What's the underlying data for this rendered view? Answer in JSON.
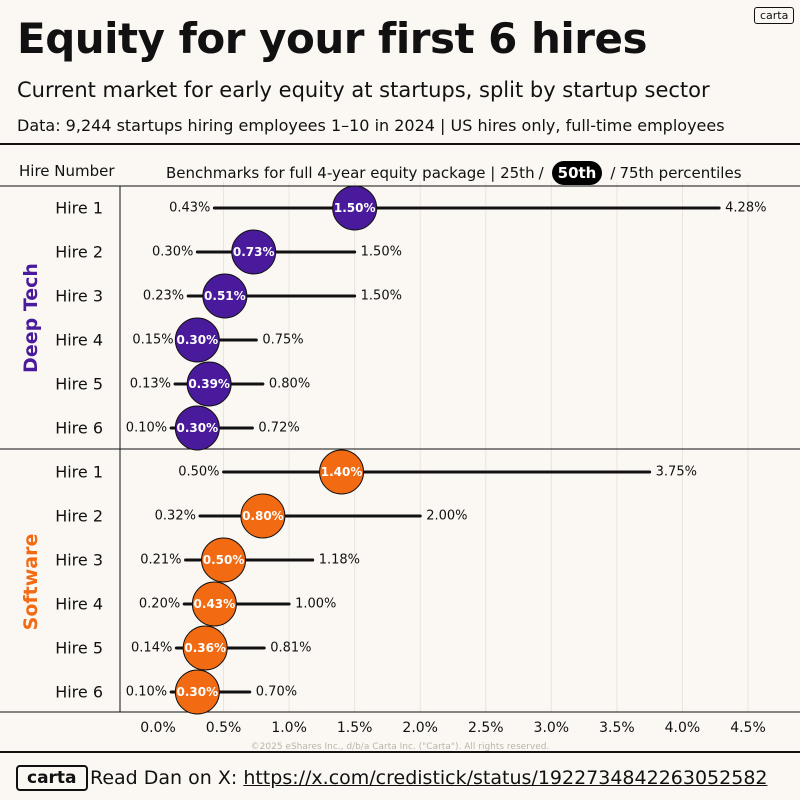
{
  "header": {
    "title": "Equity for your first 6 hires",
    "subtitle": "Current market for early equity at startups, split by startup sector",
    "source": "Data: 9,244 startups hiring employees 1–10 in 2024 | US hires only, full-time employees",
    "logo": "carta"
  },
  "columns": {
    "hire_number": "Hire Number",
    "benchmarks_prefix": "Benchmarks for full 4-year equity package | 25th",
    "slash1": "/",
    "median": "50th",
    "slash2": "/",
    "benchmarks_suffix": "75th percentiles"
  },
  "copyright": "©2025 eShares Inc., d/b/a Carta Inc. (\"Carta\"). All rights reserved.",
  "footer": {
    "logo": "carta",
    "prefix": "Read Dan on X:",
    "url": "https://x.com/credistick/status/1922734842263052582"
  },
  "colors": {
    "deep_tech": "#4a1a9c",
    "software": "#f26a12",
    "line": "#111111",
    "grid": "#e8e3dc"
  },
  "chart_data": {
    "type": "range-dot",
    "x_axis": {
      "ticks": [
        "0.0%",
        "0.5%",
        "1.0%",
        "1.5%",
        "2.0%",
        "2.5%",
        "3.0%",
        "3.5%",
        "4.0%",
        "4.5%"
      ],
      "tick_values": [
        0,
        0.5,
        1.0,
        1.5,
        2.0,
        2.5,
        3.0,
        3.5,
        4.0,
        4.5
      ],
      "range": [
        0,
        4.5
      ]
    },
    "groups": [
      {
        "name": "Deep Tech",
        "color": "#4a1a9c",
        "rows": [
          {
            "label": "Hire 1",
            "p25": 0.43,
            "p50": 1.5,
            "p75": 4.28,
            "p25_label": "0.43%",
            "p50_label": "1.50%",
            "p75_label": "4.28%"
          },
          {
            "label": "Hire 2",
            "p25": 0.3,
            "p50": 0.73,
            "p75": 1.5,
            "p25_label": "0.30%",
            "p50_label": "0.73%",
            "p75_label": "1.50%"
          },
          {
            "label": "Hire 3",
            "p25": 0.23,
            "p50": 0.51,
            "p75": 1.5,
            "p25_label": "0.23%",
            "p50_label": "0.51%",
            "p75_label": "1.50%"
          },
          {
            "label": "Hire 4",
            "p25": 0.15,
            "p50": 0.3,
            "p75": 0.75,
            "p25_label": "0.15%",
            "p50_label": "0.30%",
            "p75_label": "0.75%"
          },
          {
            "label": "Hire 5",
            "p25": 0.13,
            "p50": 0.39,
            "p75": 0.8,
            "p25_label": "0.13%",
            "p50_label": "0.39%",
            "p75_label": "0.80%"
          },
          {
            "label": "Hire 6",
            "p25": 0.1,
            "p50": 0.3,
            "p75": 0.72,
            "p25_label": "0.10%",
            "p50_label": "0.30%",
            "p75_label": "0.72%"
          }
        ]
      },
      {
        "name": "Software",
        "color": "#f26a12",
        "rows": [
          {
            "label": "Hire 1",
            "p25": 0.5,
            "p50": 1.4,
            "p75": 3.75,
            "p25_label": "0.50%",
            "p50_label": "1.40%",
            "p75_label": "3.75%"
          },
          {
            "label": "Hire 2",
            "p25": 0.32,
            "p50": 0.8,
            "p75": 2.0,
            "p25_label": "0.32%",
            "p50_label": "0.80%",
            "p75_label": "2.00%"
          },
          {
            "label": "Hire 3",
            "p25": 0.21,
            "p50": 0.5,
            "p75": 1.18,
            "p25_label": "0.21%",
            "p50_label": "0.50%",
            "p75_label": "1.18%"
          },
          {
            "label": "Hire 4",
            "p25": 0.2,
            "p50": 0.43,
            "p75": 1.0,
            "p25_label": "0.20%",
            "p50_label": "0.43%",
            "p75_label": "1.00%"
          },
          {
            "label": "Hire 5",
            "p25": 0.14,
            "p50": 0.36,
            "p75": 0.81,
            "p25_label": "0.14%",
            "p50_label": "0.36%",
            "p75_label": "0.81%"
          },
          {
            "label": "Hire 6",
            "p25": 0.1,
            "p50": 0.3,
            "p75": 0.7,
            "p25_label": "0.10%",
            "p50_label": "0.30%",
            "p75_label": "0.70%"
          }
        ]
      }
    ]
  }
}
